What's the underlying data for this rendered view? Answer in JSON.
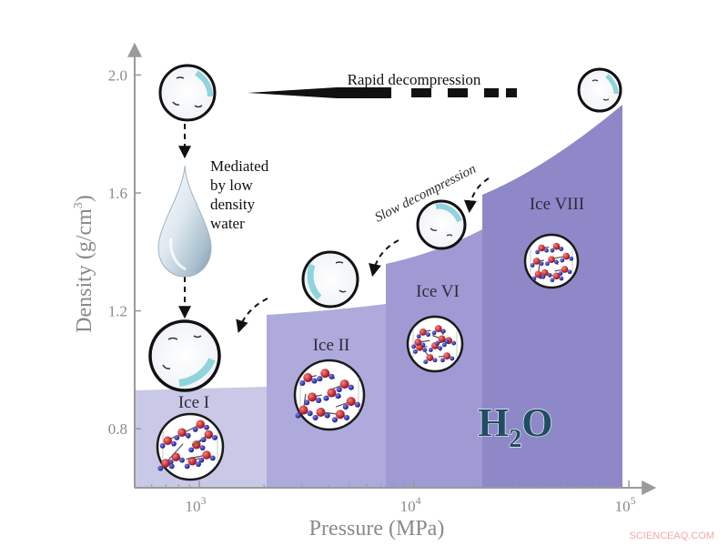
{
  "chart_data": {
    "type": "area",
    "xscale": "log",
    "xlabel": "Pressure (MPa)",
    "ylabel_main": "Density (g/cm",
    "ylabel_sup": "3",
    "ylabel_close": ")",
    "x_ticks": [
      {
        "value": 1000,
        "base": "10",
        "exp": "3"
      },
      {
        "value": 10000,
        "base": "10",
        "exp": "4"
      },
      {
        "value": 100000,
        "base": "10",
        "exp": "5"
      }
    ],
    "y_ticks": [
      "0.8",
      "1.2",
      "1.6",
      "2.0"
    ],
    "xlim": [
      500,
      130000
    ],
    "ylim": [
      0.6,
      2.1
    ],
    "phases": [
      {
        "name": "Ice I",
        "x_range": [
          500,
          2100
        ],
        "density": [
          0.93,
          0.94
        ]
      },
      {
        "name": "Ice II",
        "x_range": [
          2100,
          7500
        ],
        "density": [
          1.19,
          1.22
        ]
      },
      {
        "name": "Ice VI",
        "x_range": [
          7500,
          22000
        ],
        "density": [
          1.35,
          1.48
        ]
      },
      {
        "name": "Ice VIII",
        "x_range": [
          22000,
          100000
        ],
        "density": [
          1.6,
          1.93
        ]
      }
    ],
    "annotations": {
      "rapid": "Rapid decompression",
      "slow": "Slow decompression",
      "mediated_lines": [
        "Mediated",
        "by low",
        "density",
        "water"
      ],
      "h2o_main": "H",
      "h2o_sub": "2",
      "h2o_end": "O"
    }
  },
  "watermark": "SCIENCEAQ.COM",
  "colors": {
    "ice_I": "#c9c8e6",
    "ice_II": "#aeaadb",
    "ice_VI": "#9f9ad3",
    "ice_VIII": "#8e88c8",
    "axis": "#9a9a9a",
    "atom_red": "#c0202a",
    "atom_blue": "#2a2f9a"
  },
  "icons": [
    "ice-sphere-icon",
    "water-droplet-icon",
    "ice-crystal-structure-icon"
  ]
}
